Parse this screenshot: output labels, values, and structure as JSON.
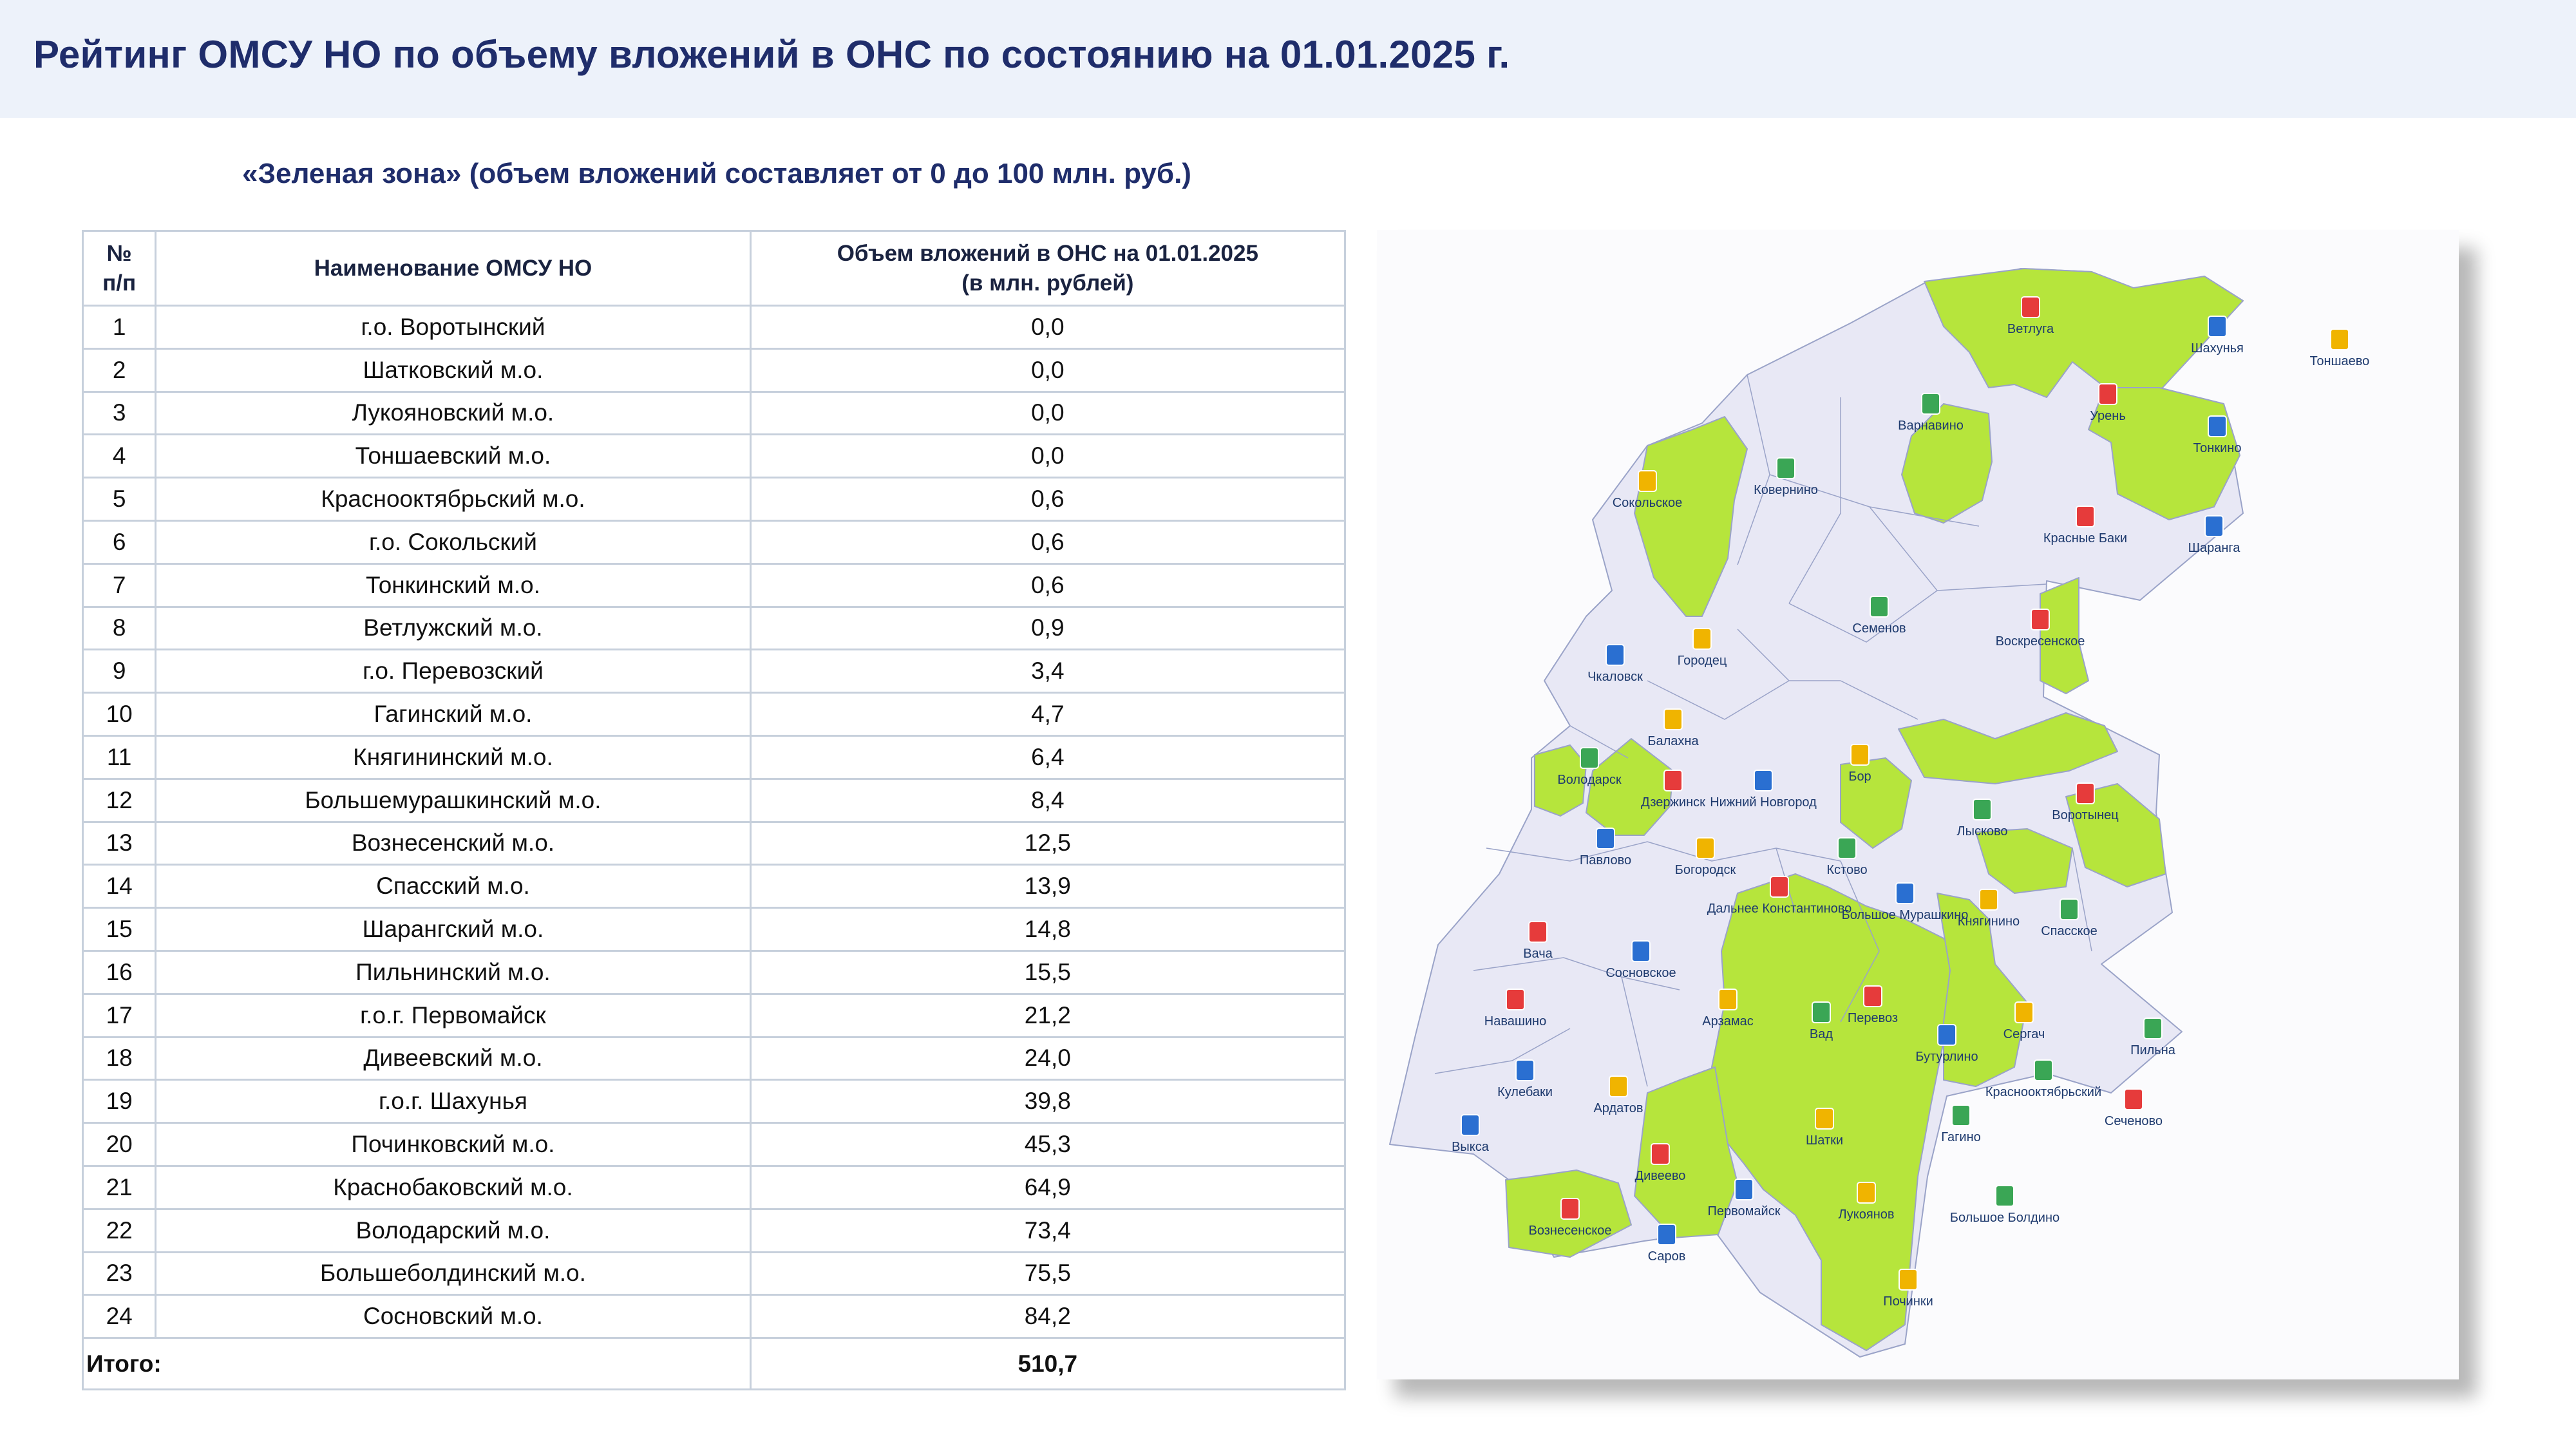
{
  "title": "Рейтинг ОМСУ НО по объему вложений в ОНС по состоянию на 01.01.2025 г.",
  "subtitle": "«Зеленая зона» (объем вложений составляет от 0 до 100 млн. руб.)",
  "table": {
    "headers": [
      "№ п/п",
      "Наименование ОМСУ НО",
      "Объем вложений в ОНС на 01.01.2025 (в млн. рублей)"
    ],
    "header_lines": {
      "num": [
        "№",
        "п/п"
      ],
      "name": [
        "Наименование ОМСУ НО"
      ],
      "value": [
        "Объем вложений в ОНС на 01.01.2025",
        "(в млн. рублей)"
      ]
    },
    "rows": [
      {
        "n": "1",
        "name": "г.о. Воротынский",
        "value": "0,0"
      },
      {
        "n": "2",
        "name": "Шатковский м.о.",
        "value": "0,0"
      },
      {
        "n": "3",
        "name": "Лукояновский м.о.",
        "value": "0,0"
      },
      {
        "n": "4",
        "name": "Тоншаевский м.о.",
        "value": "0,0"
      },
      {
        "n": "5",
        "name": "Краснооктябрьский м.о.",
        "value": "0,6"
      },
      {
        "n": "6",
        "name": "г.о. Сокольский",
        "value": "0,6"
      },
      {
        "n": "7",
        "name": "Тонкинский м.о.",
        "value": "0,6"
      },
      {
        "n": "8",
        "name": "Ветлужский м.о.",
        "value": "0,9"
      },
      {
        "n": "9",
        "name": "г.о. Перевозский",
        "value": "3,4"
      },
      {
        "n": "10",
        "name": "Гагинский м.о.",
        "value": "4,7"
      },
      {
        "n": "11",
        "name": "Княгининский м.о.",
        "value": "6,4"
      },
      {
        "n": "12",
        "name": "Большемурашкинский м.о.",
        "value": "8,4"
      },
      {
        "n": "13",
        "name": "Вознесенский м.о.",
        "value": "12,5"
      },
      {
        "n": "14",
        "name": "Спасский м.о.",
        "value": "13,9"
      },
      {
        "n": "15",
        "name": "Шарангский м.о.",
        "value": "14,8"
      },
      {
        "n": "16",
        "name": "Пильнинский м.о.",
        "value": "15,5"
      },
      {
        "n": "17",
        "name": "г.о.г. Первомайск",
        "value": "21,2"
      },
      {
        "n": "18",
        "name": "Дивеевский м.о.",
        "value": "24,0"
      },
      {
        "n": "19",
        "name": "г.о.г. Шахунья",
        "value": "39,8"
      },
      {
        "n": "20",
        "name": "Починковский м.о.",
        "value": "45,3"
      },
      {
        "n": "21",
        "name": "Краснобаковский м.о.",
        "value": "64,9"
      },
      {
        "n": "22",
        "name": "Володарский м.о.",
        "value": "73,4"
      },
      {
        "n": "23",
        "name": "Большеболдинский м.о.",
        "value": "75,5"
      },
      {
        "n": "24",
        "name": "Сосновский м.о.",
        "value": "84,2"
      }
    ],
    "total_label": "Итого:",
    "total_value": "510,7"
  },
  "map": {
    "colors": {
      "green": "#b6e53c",
      "lavender": "#e8e8f5",
      "border": "#9aa3c8",
      "frame": "#fbfbfd"
    },
    "districts": [
      {
        "name": "Ветлуга",
        "green": true
      },
      {
        "name": "Шахунья",
        "green": true
      },
      {
        "name": "Тоншаево",
        "green": true
      },
      {
        "name": "Варнавино",
        "green": false
      },
      {
        "name": "Урень",
        "green": false
      },
      {
        "name": "Тонкино",
        "green": true
      },
      {
        "name": "Сокольское",
        "green": true
      },
      {
        "name": "Ковернино",
        "green": false
      },
      {
        "name": "Красные Баки",
        "green": true
      },
      {
        "name": "Шаранга",
        "green": true
      },
      {
        "name": "Городец",
        "green": false
      },
      {
        "name": "Семенов",
        "green": false
      },
      {
        "name": "Воскресенское",
        "green": false
      },
      {
        "name": "Чкаловск",
        "green": false
      },
      {
        "name": "Балахна",
        "green": false
      },
      {
        "name": "Володарск",
        "green": true
      },
      {
        "name": "Дзержинск",
        "green": false
      },
      {
        "name": "Нижний Новгород",
        "green": false
      },
      {
        "name": "Бор",
        "green": false
      },
      {
        "name": "Лысково",
        "green": false
      },
      {
        "name": "Воротынец",
        "green": true
      },
      {
        "name": "Павлово",
        "green": false
      },
      {
        "name": "Богородск",
        "green": false
      },
      {
        "name": "Кстово",
        "green": false
      },
      {
        "name": "Дальнее Константиново",
        "green": false
      },
      {
        "name": "Большое Мурашкино",
        "green": true
      },
      {
        "name": "Княгинино",
        "green": true
      },
      {
        "name": "Спасское",
        "green": true
      },
      {
        "name": "Вача",
        "green": false
      },
      {
        "name": "Сосновское",
        "green": true
      },
      {
        "name": "Арзамас",
        "green": false
      },
      {
        "name": "Вад",
        "green": false
      },
      {
        "name": "Перевоз",
        "green": true
      },
      {
        "name": "Бутурлино",
        "green": false
      },
      {
        "name": "Сергач",
        "green": false
      },
      {
        "name": "Пильна",
        "green": true
      },
      {
        "name": "Навашино",
        "green": false
      },
      {
        "name": "Кулебаки",
        "green": false
      },
      {
        "name": "Ардатов",
        "green": false
      },
      {
        "name": "Краснооктябрьский",
        "green": true
      },
      {
        "name": "Сеченово",
        "green": false
      },
      {
        "name": "Выкса",
        "green": false
      },
      {
        "name": "Шатки",
        "green": true
      },
      {
        "name": "Гагино",
        "green": true
      },
      {
        "name": "Дивеево",
        "green": true
      },
      {
        "name": "Первомайск",
        "green": true
      },
      {
        "name": "Лукоянов",
        "green": true
      },
      {
        "name": "Большое Болдино",
        "green": true
      },
      {
        "name": "Вознесенское",
        "green": true
      },
      {
        "name": "Саров",
        "green": false
      },
      {
        "name": "Починки",
        "green": true
      }
    ]
  }
}
